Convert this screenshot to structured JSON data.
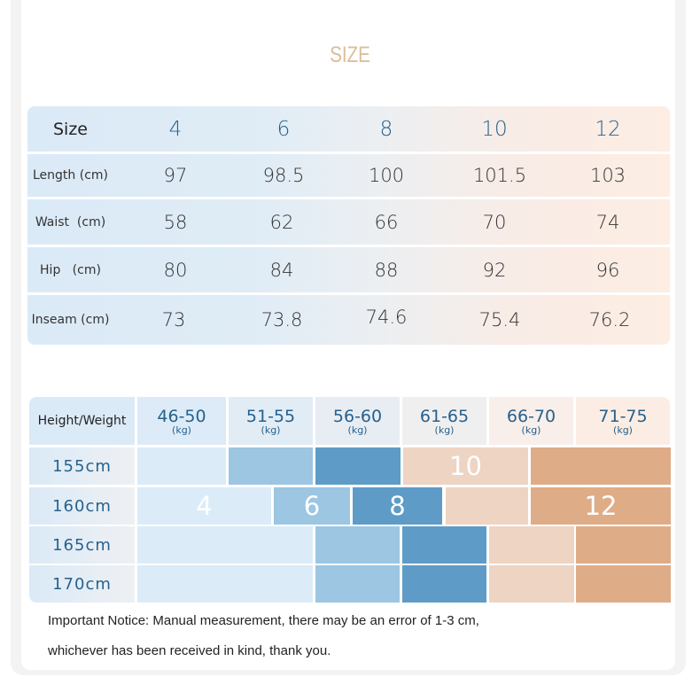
{
  "title": "SIZE",
  "size_table": {
    "header_label": "Size",
    "sizes": [
      "4",
      "6",
      "8",
      "10",
      "12"
    ],
    "rows": [
      {
        "label": "Length (cm)",
        "values": [
          "97",
          "98.5",
          "100",
          "101.5",
          "103"
        ]
      },
      {
        "label": "Waist  (cm)",
        "values": [
          "58",
          "62",
          "66",
          "70",
          "74"
        ]
      },
      {
        "label": "Hip   (cm)",
        "values": [
          "80",
          "84",
          "88",
          "92",
          "96"
        ]
      },
      {
        "label": "Inseam (cm)",
        "values": [
          "73",
          "73.8",
          "74.6",
          "75.4",
          "76.2"
        ]
      }
    ]
  },
  "fit_table": {
    "header_label": "Height/Weight",
    "weights": [
      {
        "range": "46-50",
        "unit": "(kg)"
      },
      {
        "range": "51-55",
        "unit": "(kg)"
      },
      {
        "range": "56-60",
        "unit": "(kg)"
      },
      {
        "range": "61-65",
        "unit": "(kg)"
      },
      {
        "range": "66-70",
        "unit": "(kg)"
      },
      {
        "range": "71-75",
        "unit": "(kg)"
      }
    ],
    "heights": [
      "155cm",
      "160cm",
      "165cm",
      "170cm"
    ],
    "size_labels": {
      "s4": "4",
      "s6": "6",
      "s8": "8",
      "s10": "10",
      "s12": "12"
    },
    "colors": {
      "size4": "#dbecf8",
      "size6": "#9cc6e2",
      "size8": "#5e9cc7",
      "size10": "#eed4c3",
      "size12": "#dfac88"
    }
  },
  "notice": {
    "line1": "Important Notice: Manual measurement, there may be an error of 1-3 cm,",
    "line2": "whichever has been received in kind, thank you."
  }
}
